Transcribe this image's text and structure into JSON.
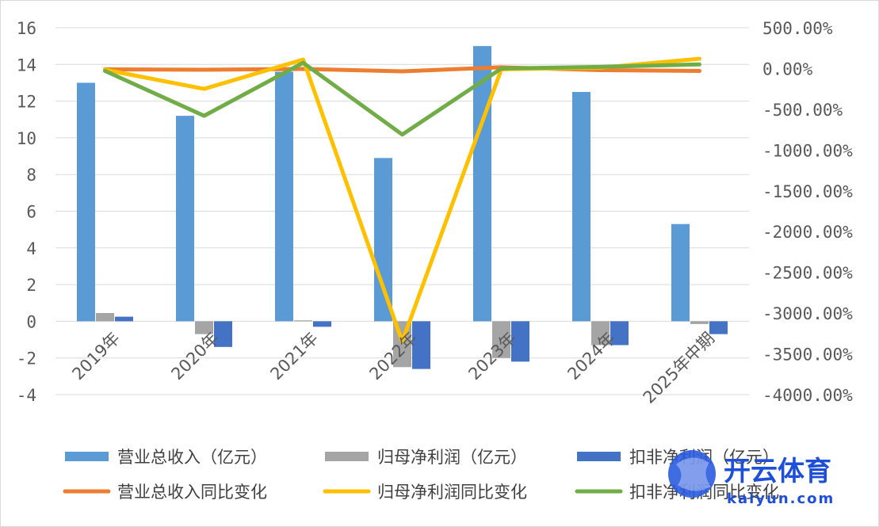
{
  "chart_data": {
    "type": "bar",
    "categories": [
      "2019年",
      "2020年",
      "2021年",
      "2022年",
      "2023年",
      "2024年",
      "2025年中期"
    ],
    "y_left": {
      "ylim": [
        -4,
        16
      ],
      "ticks": [
        16,
        14,
        12,
        10,
        8,
        6,
        4,
        2,
        0,
        -2,
        -4
      ],
      "tick_labels": [
        "16",
        "14",
        "12",
        "10",
        "8",
        "6",
        "4",
        "2",
        "0",
        "-2",
        "-4"
      ]
    },
    "y_right": {
      "ylim": [
        -4000,
        500
      ],
      "ticks": [
        500,
        0,
        -500,
        -1000,
        -1500,
        -2000,
        -2500,
        -3000,
        -3500,
        -4000
      ],
      "tick_labels": [
        "500.00%",
        "0.00%",
        "-500.00%",
        "-1000.00%",
        "-1500.00%",
        "-2000.00%",
        "-2500.00%",
        "-3000.00%",
        "-3500.00%",
        "-4000.00%"
      ]
    },
    "bar_series": [
      {
        "name": "营业总收入（亿元）",
        "color": "#5B9BD5",
        "values": [
          13.0,
          11.2,
          13.6,
          8.9,
          15.0,
          12.5,
          5.3
        ]
      },
      {
        "name": "归母净利润（亿元）",
        "color": "#A5A5A5",
        "values": [
          0.45,
          -0.7,
          0.05,
          -2.5,
          -2.0,
          -1.3,
          -0.15
        ]
      },
      {
        "name": "扣非净利润（亿元）",
        "color": "#4472C4",
        "values": [
          0.25,
          -1.4,
          -0.3,
          -2.6,
          -2.2,
          -1.3,
          -0.7
        ]
      }
    ],
    "line_series": [
      {
        "name": "营业总收入同比变化",
        "color": "#ED7D31",
        "values": [
          -10,
          -15,
          -5,
          -35,
          15,
          -20,
          -30
        ]
      },
      {
        "name": "归母净利润同比变化",
        "color": "#FFC000",
        "values": [
          -15,
          -250,
          110,
          -3350,
          -10,
          10,
          120
        ]
      },
      {
        "name": "扣非净利润同比变化",
        "color": "#70AD47",
        "values": [
          -30,
          -580,
          70,
          -810,
          0,
          20,
          50
        ]
      }
    ],
    "grid": true,
    "legend_position": "bottom"
  },
  "watermark": {
    "brand_cn": "开云体育",
    "brand_en": "kaiyun.com",
    "color": "#1E4FD8"
  }
}
